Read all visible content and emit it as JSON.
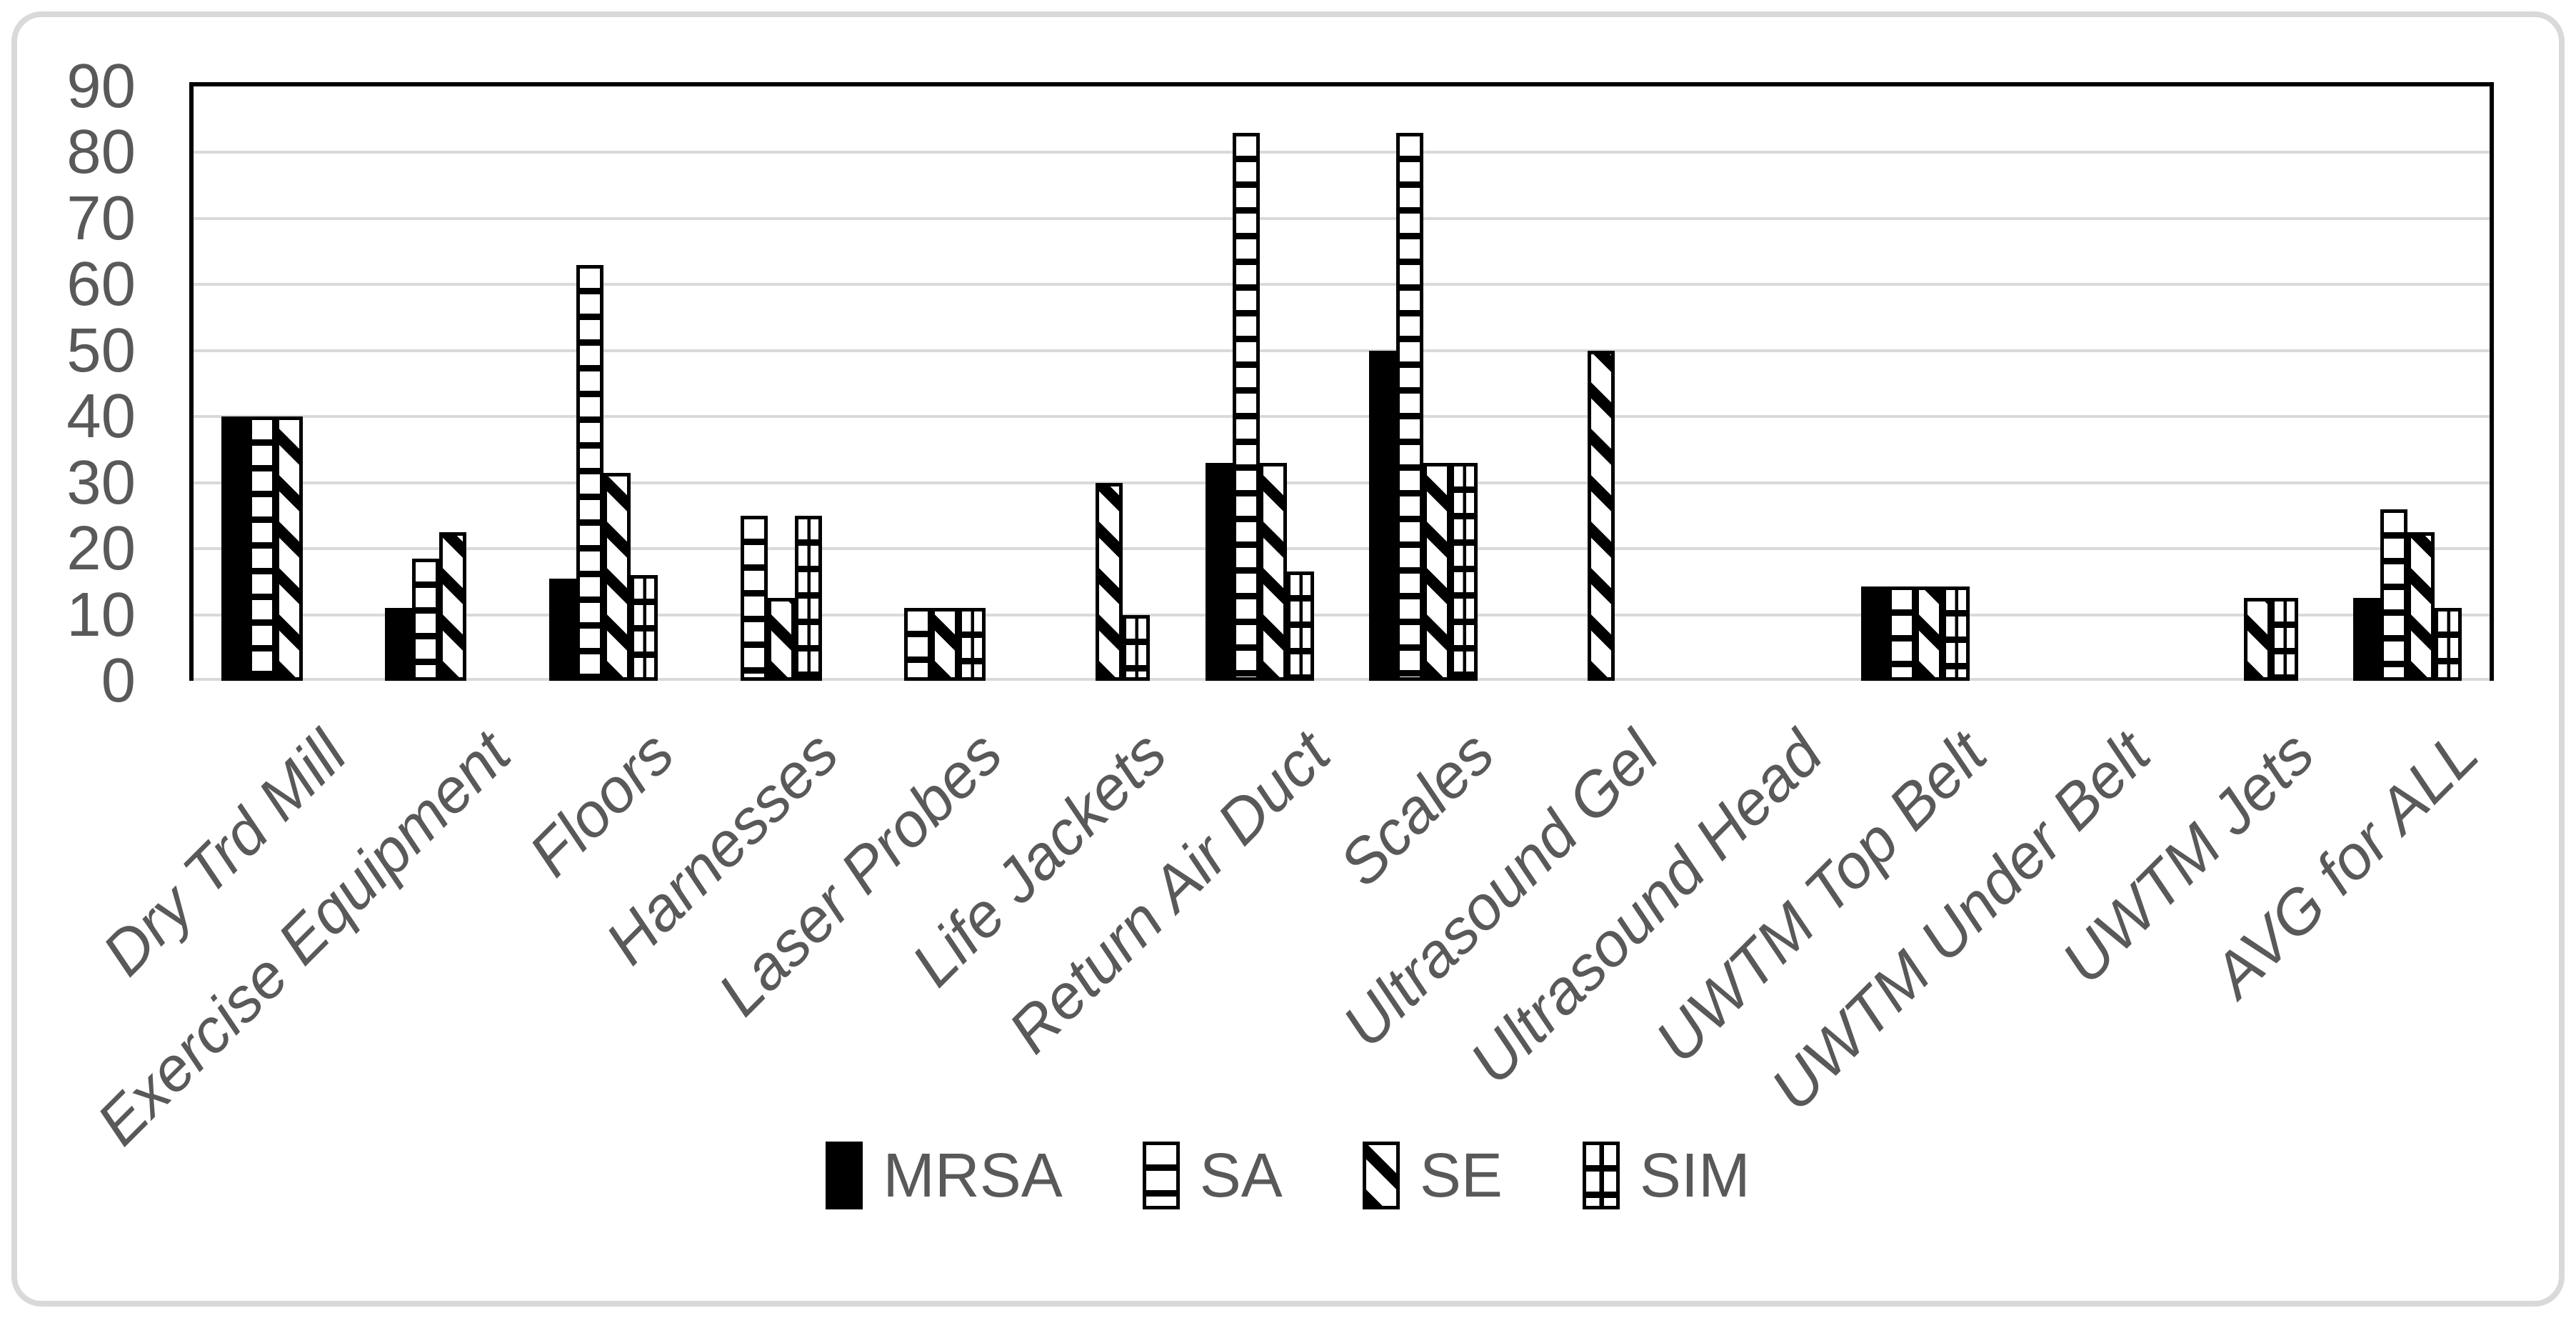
{
  "chart_data": {
    "type": "bar",
    "title": "",
    "xlabel": "",
    "ylabel": "",
    "categories": [
      "Dry Trd Mill",
      "Exercise Equipment",
      "Floors",
      "Harnesses",
      "Laser Probes",
      "Life Jackets",
      "Return Air Duct",
      "Scales",
      "Ultrasound Gel",
      "Ultrasound Head",
      "UWTM Top Belt",
      "UWTM Under Belt",
      "UWTM Jets",
      "AVG for ALL"
    ],
    "series": [
      {
        "name": "MRSA",
        "pattern": "solid",
        "values": [
          40,
          11,
          15.5,
          0,
          0,
          0,
          33,
          50,
          0,
          0,
          14.3,
          0,
          0,
          12.5
        ]
      },
      {
        "name": "SA",
        "pattern": "hlines",
        "values": [
          40,
          18.5,
          63,
          25,
          11,
          0,
          83,
          83,
          0,
          0,
          14.3,
          0,
          0,
          26
        ]
      },
      {
        "name": "SE",
        "pattern": "diagonal",
        "values": [
          40,
          22.5,
          31.5,
          12.5,
          11,
          30,
          33,
          33,
          50,
          0,
          14.3,
          0,
          12.5,
          22.5
        ]
      },
      {
        "name": "SIM",
        "pattern": "grid",
        "values": [
          0,
          0,
          16,
          25,
          11,
          10,
          16.5,
          33,
          0,
          0,
          14.3,
          0,
          12.5,
          11
        ]
      }
    ],
    "ylim": [
      0,
      90
    ],
    "y_ticks": [
      0,
      10,
      20,
      30,
      40,
      50,
      60,
      70,
      80,
      90
    ],
    "grid": "horizontal",
    "legend_position": "bottom"
  },
  "colors": {
    "bar_fill": "#000000",
    "text": "#595959",
    "gridline": "#d9d9d9",
    "frame_border": "#d9d9d9",
    "plot_border": "#000000",
    "background": "#ffffff"
  }
}
